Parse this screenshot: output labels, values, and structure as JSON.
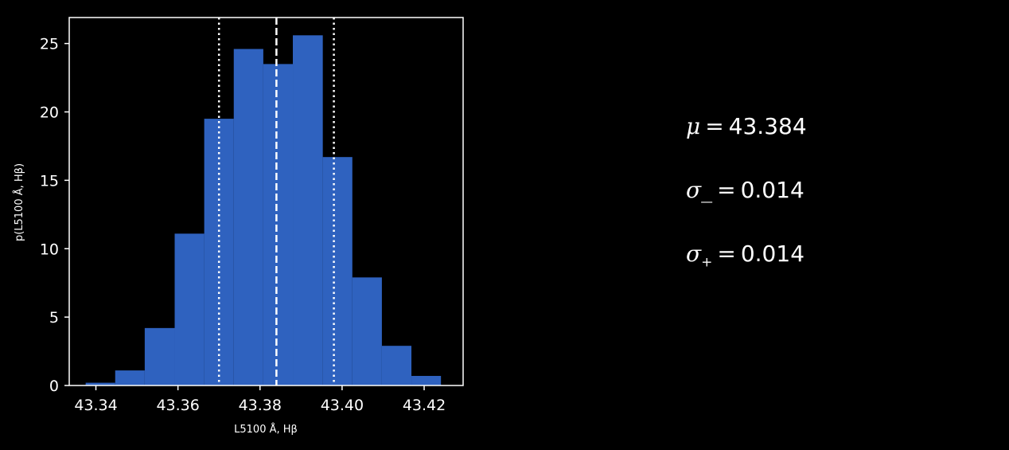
{
  "chart_data": {
    "type": "histogram",
    "xlabel": "L5100 Å, Hβ",
    "ylabel": "p(L5100 Å, Hβ)",
    "xlim": [
      43.3335,
      43.4295
    ],
    "ylim": [
      0,
      26.9
    ],
    "x_ticks": [
      "43.34",
      "43.36",
      "43.38",
      "43.40",
      "43.42"
    ],
    "x_tick_values": [
      43.34,
      43.36,
      43.38,
      43.4,
      43.42
    ],
    "y_ticks": [
      "0",
      "5",
      "10",
      "15",
      "20",
      "25"
    ],
    "y_tick_values": [
      0,
      5,
      10,
      15,
      20,
      25
    ],
    "bin_edges": [
      43.338,
      43.345,
      43.352,
      43.359,
      43.366,
      43.373,
      43.38,
      43.387,
      43.394,
      43.401,
      43.408,
      43.415,
      43.422
    ],
    "bin_edges_display": [
      43.3375,
      43.3447,
      43.3519,
      43.3592,
      43.3664,
      43.3736,
      43.3808,
      43.388,
      43.3953,
      43.4025,
      43.4097,
      43.4169,
      43.4241
    ],
    "values": [
      0.2,
      1.1,
      4.2,
      11.1,
      19.5,
      24.6,
      23.5,
      25.6,
      16.7,
      7.9,
      2.9,
      0.7
    ],
    "bar_color": "#2f62bf",
    "median": 43.384,
    "lower_bound": 43.37,
    "upper_bound": 43.398,
    "grid": false
  },
  "stats": {
    "mu_label": "μ",
    "mu_value": "43.384",
    "sigma_minus_label": "σ_",
    "sigma_minus_value": "0.014",
    "sigma_plus_label": "σ",
    "sigma_plus_sub": "+",
    "sigma_plus_value": "0.014",
    "equals": "="
  }
}
